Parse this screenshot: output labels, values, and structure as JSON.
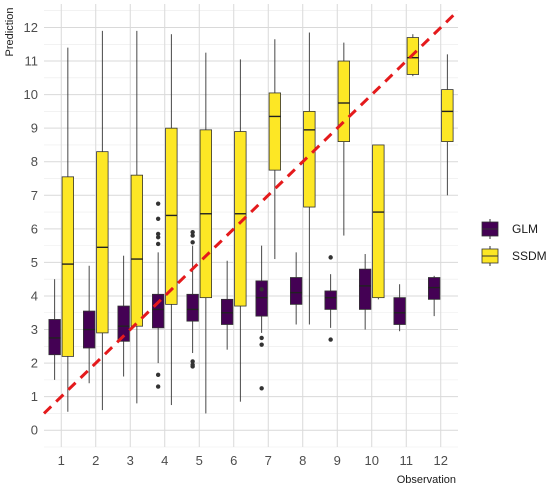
{
  "chart_data": {
    "type": "boxplot",
    "xlabel": "Observation",
    "ylabel": "Prediction",
    "categories": [
      "1",
      "2",
      "3",
      "4",
      "5",
      "6",
      "7",
      "8",
      "9",
      "10",
      "11",
      "12"
    ],
    "ylim": [
      -0.5,
      12.7
    ],
    "yticks": [
      0,
      1,
      2,
      3,
      4,
      5,
      6,
      7,
      8,
      9,
      10,
      11,
      12
    ],
    "grid": true,
    "legend_position": "right",
    "reference_line": {
      "type": "identity",
      "color": "#e41a1c",
      "style": "dashed"
    },
    "series": [
      {
        "name": "GLM",
        "color": "#440154",
        "boxes": [
          {
            "q1": 2.25,
            "median": 2.75,
            "q3": 3.3,
            "wlo": 1.5,
            "whi": 4.5,
            "outliers": []
          },
          {
            "q1": 2.45,
            "median": 3.0,
            "q3": 3.55,
            "wlo": 1.4,
            "whi": 4.9,
            "outliers": []
          },
          {
            "q1": 2.65,
            "median": 3.1,
            "q3": 3.7,
            "wlo": 1.6,
            "whi": 5.2,
            "outliers": []
          },
          {
            "q1": 3.05,
            "median": 3.6,
            "q3": 4.05,
            "wlo": 2.0,
            "whi": 5.3,
            "outliers": [
              1.3,
              1.65,
              5.55,
              5.75,
              5.85,
              6.3,
              6.75
            ]
          },
          {
            "q1": 3.25,
            "median": 3.6,
            "q3": 4.05,
            "wlo": 2.3,
            "whi": 5.5,
            "outliers": [
              1.9,
              1.95,
              2.05,
              5.6,
              5.8,
              5.9
            ]
          },
          {
            "q1": 3.15,
            "median": 3.5,
            "q3": 3.9,
            "wlo": 2.4,
            "whi": 5.05,
            "outliers": []
          },
          {
            "q1": 3.4,
            "median": 3.95,
            "q3": 4.45,
            "wlo": 2.9,
            "whi": 5.5,
            "outliers": [
              1.25,
              2.55,
              2.75,
              4.2
            ]
          },
          {
            "q1": 3.75,
            "median": 4.1,
            "q3": 4.55,
            "wlo": 3.15,
            "whi": 5.3,
            "outliers": []
          },
          {
            "q1": 3.6,
            "median": 3.95,
            "q3": 4.15,
            "wlo": 3.05,
            "whi": 4.65,
            "outliers": [
              2.7,
              5.15
            ]
          },
          {
            "q1": 3.6,
            "median": 4.3,
            "q3": 4.8,
            "wlo": 3.0,
            "whi": 5.25,
            "outliers": []
          },
          {
            "q1": 3.15,
            "median": 3.5,
            "q3": 3.95,
            "wlo": 2.95,
            "whi": 4.35,
            "outliers": []
          },
          {
            "q1": 3.9,
            "median": 4.25,
            "q3": 4.55,
            "wlo": 3.4,
            "whi": 4.6,
            "outliers": []
          }
        ]
      },
      {
        "name": "SSDM",
        "color": "#fde725",
        "boxes": [
          {
            "q1": 2.2,
            "median": 4.95,
            "q3": 7.55,
            "wlo": 0.55,
            "whi": 11.4,
            "outliers": []
          },
          {
            "q1": 2.9,
            "median": 5.45,
            "q3": 8.3,
            "wlo": 0.6,
            "whi": 11.9,
            "outliers": []
          },
          {
            "q1": 3.1,
            "median": 5.1,
            "q3": 7.6,
            "wlo": 0.8,
            "whi": 11.9,
            "outliers": []
          },
          {
            "q1": 3.75,
            "median": 6.4,
            "q3": 9.0,
            "wlo": 0.75,
            "whi": 11.8,
            "outliers": []
          },
          {
            "q1": 3.95,
            "median": 6.45,
            "q3": 8.95,
            "wlo": 0.5,
            "whi": 11.25,
            "outliers": []
          },
          {
            "q1": 3.7,
            "median": 6.45,
            "q3": 8.9,
            "wlo": 0.85,
            "whi": 11.05,
            "outliers": []
          },
          {
            "q1": 7.75,
            "median": 9.35,
            "q3": 10.05,
            "wlo": 5.1,
            "whi": 11.65,
            "outliers": []
          },
          {
            "q1": 6.65,
            "median": 8.95,
            "q3": 9.5,
            "wlo": 3.15,
            "whi": 11.85,
            "outliers": []
          },
          {
            "q1": 8.6,
            "median": 9.75,
            "q3": 11.0,
            "wlo": 5.8,
            "whi": 11.55,
            "outliers": []
          },
          {
            "q1": 3.95,
            "median": 6.5,
            "q3": 8.5,
            "wlo": 3.9,
            "whi": 8.5,
            "outliers": []
          },
          {
            "q1": 10.6,
            "median": 11.1,
            "q3": 11.7,
            "wlo": 10.55,
            "whi": 11.8,
            "outliers": []
          },
          {
            "q1": 8.6,
            "median": 9.5,
            "q3": 10.15,
            "wlo": 7.0,
            "whi": 11.2,
            "outliers": []
          }
        ]
      }
    ]
  }
}
